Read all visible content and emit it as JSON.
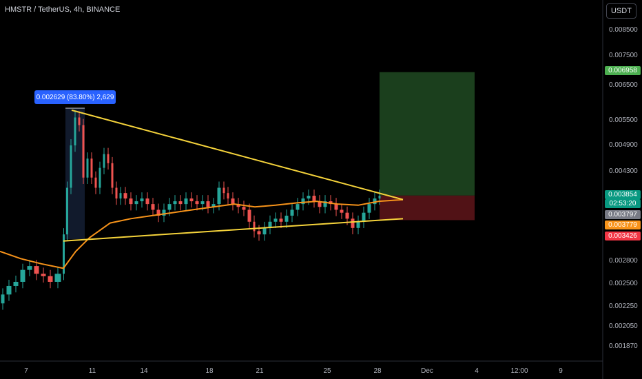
{
  "header": {
    "title": "HMSTR / TetherUS, 4h, BINANCE"
  },
  "price_axis": {
    "currency": "USDT",
    "ticks": [
      "0.008500",
      "0.007500",
      "0.006500",
      "0.005500",
      "0.004900",
      "0.004300",
      "0.002800",
      "0.002500",
      "0.002250",
      "0.002050",
      "0.001870"
    ]
  },
  "time_axis": {
    "ticks": [
      "7",
      "11",
      "14",
      "18",
      "21",
      "25",
      "28",
      "Dec",
      "4",
      "12:00",
      "9"
    ]
  },
  "price_tags": {
    "target": "0.006958",
    "current": "0.003854",
    "countdown": "02:53:20",
    "close": "0.003797",
    "ma": "0.003779",
    "stop": "0.003426"
  },
  "measure_label": "0.002629 (83.80%) 2,629",
  "colors": {
    "up": "#26a69a",
    "down": "#ef5350",
    "ma": "#f7931a",
    "trendline": "#f5d33b",
    "profit_zone": "#1e4620",
    "loss_zone": "#5a1418",
    "measure": "#2962ff"
  },
  "chart_data": {
    "type": "candlestick",
    "symbol": "HMSTR / TetherUS",
    "interval": "4h",
    "exchange": "BINANCE",
    "x_ticks": [
      "7",
      "11",
      "14",
      "18",
      "21",
      "25",
      "28",
      "Dec",
      "4",
      "12:00",
      "9"
    ],
    "y_ticks": [
      0.0085,
      0.0075,
      0.0065,
      0.0055,
      0.0049,
      0.0043,
      0.0028,
      0.0025,
      0.00225,
      0.00205,
      0.00187
    ],
    "y_scale": "log",
    "series": [
      {
        "name": "price",
        "path": [
          [
            0,
            0.0023
          ],
          [
            8,
            0.0024
          ],
          [
            18,
            0.0025
          ],
          [
            28,
            0.00255
          ],
          [
            38,
            0.0027
          ],
          [
            48,
            0.00275
          ],
          [
            58,
            0.00265
          ],
          [
            68,
            0.00262
          ],
          [
            78,
            0.00255
          ],
          [
            90,
            0.00265
          ],
          [
            95,
            0.0032
          ],
          [
            100,
            0.004
          ],
          [
            106,
            0.0049
          ],
          [
            112,
            0.0056
          ],
          [
            118,
            0.0054
          ],
          [
            124,
            0.0042
          ],
          [
            130,
            0.0046
          ],
          [
            136,
            0.0042
          ],
          [
            142,
            0.004
          ],
          [
            148,
            0.0044
          ],
          [
            154,
            0.0047
          ],
          [
            160,
            0.0045
          ],
          [
            166,
            0.004
          ],
          [
            172,
            0.0038
          ],
          [
            178,
            0.0039
          ],
          [
            186,
            0.0038
          ],
          [
            194,
            0.0037
          ],
          [
            202,
            0.00375
          ],
          [
            210,
            0.0038
          ],
          [
            218,
            0.0037
          ],
          [
            226,
            0.0036
          ],
          [
            234,
            0.0035
          ],
          [
            242,
            0.0036
          ],
          [
            250,
            0.0037
          ],
          [
            258,
            0.00375
          ],
          [
            266,
            0.0037
          ],
          [
            274,
            0.0038
          ],
          [
            282,
            0.00375
          ],
          [
            290,
            0.0037
          ],
          [
            298,
            0.00375
          ],
          [
            306,
            0.00365
          ],
          [
            314,
            0.0037
          ],
          [
            322,
            0.004
          ],
          [
            328,
            0.0039
          ],
          [
            334,
            0.0038
          ],
          [
            342,
            0.0037
          ],
          [
            350,
            0.00365
          ],
          [
            358,
            0.0036
          ],
          [
            366,
            0.0034
          ],
          [
            372,
            0.00325
          ],
          [
            380,
            0.0032
          ],
          [
            388,
            0.0033
          ],
          [
            396,
            0.0034
          ],
          [
            404,
            0.00345
          ],
          [
            412,
            0.0034
          ],
          [
            420,
            0.0035
          ],
          [
            428,
            0.0036
          ],
          [
            436,
            0.0037
          ],
          [
            444,
            0.0038
          ],
          [
            452,
            0.00385
          ],
          [
            460,
            0.00375
          ],
          [
            468,
            0.00365
          ],
          [
            476,
            0.00375
          ],
          [
            484,
            0.0037
          ],
          [
            492,
            0.0036
          ],
          [
            500,
            0.00355
          ],
          [
            508,
            0.00345
          ],
          [
            516,
            0.0033
          ],
          [
            524,
            0.0034
          ],
          [
            532,
            0.00355
          ],
          [
            540,
            0.0037
          ],
          [
            548,
            0.0038
          ],
          [
            554,
            0.00385
          ]
        ]
      },
      {
        "name": "moving_average",
        "path": [
          [
            0,
            0.00295
          ],
          [
            30,
            0.00285
          ],
          [
            60,
            0.00278
          ],
          [
            92,
            0.00272
          ],
          [
            110,
            0.00295
          ],
          [
            130,
            0.00315
          ],
          [
            160,
            0.00338
          ],
          [
            190,
            0.00345
          ],
          [
            220,
            0.0035
          ],
          [
            250,
            0.00355
          ],
          [
            280,
            0.0036
          ],
          [
            310,
            0.00365
          ],
          [
            340,
            0.0037
          ],
          [
            370,
            0.00365
          ],
          [
            400,
            0.00368
          ],
          [
            430,
            0.00372
          ],
          [
            460,
            0.00375
          ],
          [
            490,
            0.0037
          ],
          [
            520,
            0.00368
          ],
          [
            550,
            0.00375
          ],
          [
            585,
            0.00378
          ]
        ]
      }
    ],
    "trendlines": [
      {
        "name": "upper",
        "from": [
          104,
          0.0058
        ],
        "to": [
          585,
          0.00378
        ]
      },
      {
        "name": "lower",
        "from": [
          92,
          0.0031
        ],
        "to": [
          585,
          0.00345
        ]
      }
    ],
    "position": {
      "entry": 0.003854,
      "target": 0.006958,
      "stop": 0.003426
    },
    "measure": {
      "change": "0.002629",
      "percent": "83.80%",
      "ticks": "2,629"
    }
  }
}
